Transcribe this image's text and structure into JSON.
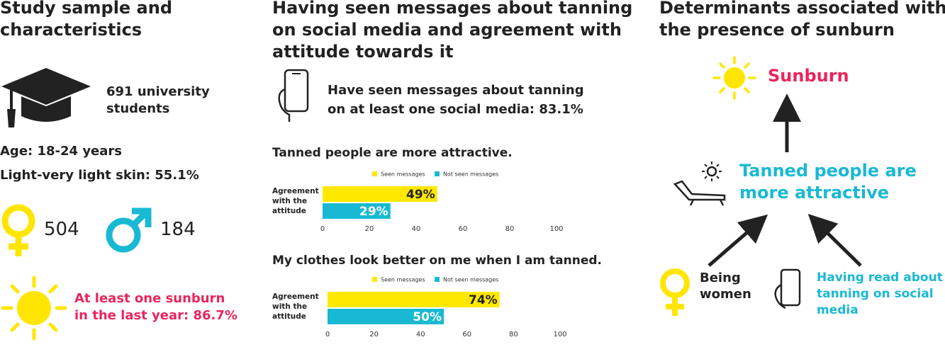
{
  "sample": {
    "title": [
      "Study sample and",
      "characteristics"
    ],
    "participants": [
      "691 university",
      "students"
    ],
    "age": "Age: 18-24 years",
    "skin": "Light-very light skin: 55.1%",
    "female_count": 504,
    "male_count": 184,
    "sunburn": [
      "At least one sunburn",
      "in the last year: 86.7%"
    ]
  },
  "social_media": {
    "title": [
      "Having seen messages about tanning",
      "on social media and agreement with",
      "attitude towards it"
    ],
    "seen": [
      "Have seen messages about tanning",
      "on at least one social media: 83.1%"
    ]
  },
  "chart_data": [
    {
      "type": "bar",
      "orientation": "horizontal",
      "title": "Tanned people are more attractive.",
      "categories": [
        "Agreement with the attitude"
      ],
      "series": [
        {
          "name": "Seen messages",
          "color": "#ffe800",
          "values": [
            49
          ],
          "value_labels": [
            "49%"
          ]
        },
        {
          "name": "Not seen messages",
          "color": "#19b9d3",
          "values": [
            29
          ],
          "value_labels": [
            "29%"
          ]
        }
      ],
      "xlim": [
        0,
        100
      ],
      "xticks": [
        0,
        20,
        40,
        60,
        80,
        100
      ]
    },
    {
      "type": "bar",
      "orientation": "horizontal",
      "title": "My clothes look better on me when I am tanned.",
      "categories": [
        "Agreement with the attitude"
      ],
      "series": [
        {
          "name": "Seen messages",
          "color": "#ffe800",
          "values": [
            74
          ],
          "value_labels": [
            "74%"
          ]
        },
        {
          "name": "Not seen messages",
          "color": "#19b9d3",
          "values": [
            50
          ],
          "value_labels": [
            "50%"
          ]
        }
      ],
      "xlim": [
        0,
        100
      ],
      "xticks": [
        0,
        20,
        40,
        60,
        80,
        100
      ]
    }
  ],
  "determinants": {
    "title": [
      "Determinants associated with",
      "the presence of sunburn"
    ],
    "outcome": "Sunburn",
    "attitude": [
      "Tanned people are",
      "more attractive"
    ],
    "factor_women": [
      "Being",
      "women"
    ],
    "factor_social": [
      "Having read  about",
      "tanning on social",
      "media"
    ]
  }
}
